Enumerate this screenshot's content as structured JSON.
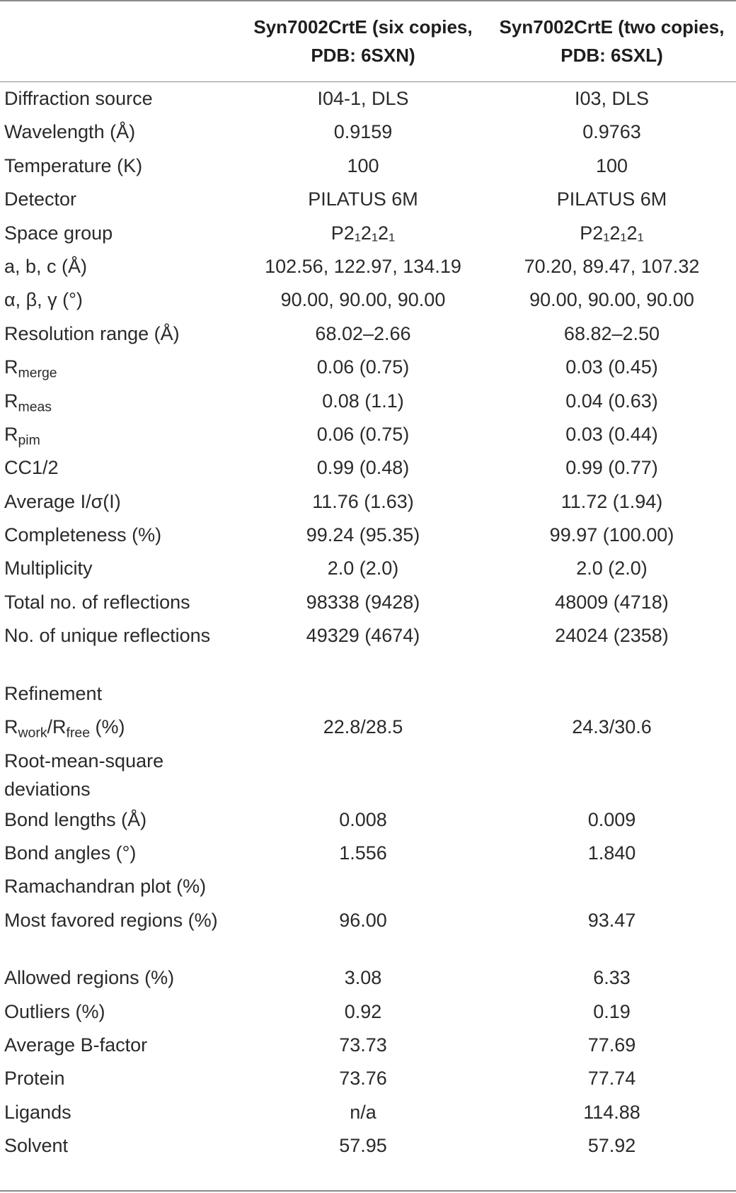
{
  "header": {
    "col2": "Syn7002CrtE (six copies, PDB: 6SXN)",
    "col3": "Syn7002CrtE (two copies, PDB: 6SXL)"
  },
  "rows": [
    {
      "label": "Diffraction source",
      "v1": "I04-1, DLS",
      "v2": "I03, DLS"
    },
    {
      "label": "Wavelength (Å)",
      "v1": "0.9159",
      "v2": "0.9763"
    },
    {
      "label": "Temperature (K)",
      "v1": "100",
      "v2": "100"
    },
    {
      "label": "Detector",
      "v1": "PILATUS 6M",
      "v2": "PILATUS 6M"
    },
    {
      "label": "Space group",
      "v1": "P2₁2₁2₁",
      "v2": "P2₁2₁2₁"
    },
    {
      "label": "a, b, c (Å)",
      "v1": "102.56, 122.97, 134.19",
      "v2": "70.20, 89.47, 107.32"
    },
    {
      "label": "α, β, γ (°)",
      "v1": "90.00, 90.00, 90.00",
      "v2": "90.00, 90.00, 90.00"
    },
    {
      "label": "Resolution range (Å)",
      "v1": "68.02–2.66",
      "v2": "68.82–2.50"
    },
    {
      "label_main": "R",
      "label_sub": "merge",
      "v1": "0.06 (0.75)",
      "v2": "0.03 (0.45)"
    },
    {
      "label_main": "R",
      "label_sub": "meas",
      "v1": "0.08 (1.1)",
      "v2": "0.04 (0.63)"
    },
    {
      "label_main": "R",
      "label_sub": "pim",
      "v1": "0.06 (0.75)",
      "v2": "0.03 (0.44)"
    },
    {
      "label": "CC1/2",
      "v1": "0.99 (0.48)",
      "v2": "0.99 (0.77)"
    },
    {
      "label": "Average I/σ(I)",
      "v1": "11.76 (1.63)",
      "v2": "11.72 (1.94)"
    },
    {
      "label": "Completeness (%)",
      "v1": "99.24 (95.35)",
      "v2": "99.97 (100.00)"
    },
    {
      "label": "Multiplicity",
      "v1": "2.0 (2.0)",
      "v2": "2.0 (2.0)"
    },
    {
      "label": "Total no. of reflections",
      "v1": "98338 (9428)",
      "v2": "48009 (4718)"
    },
    {
      "label": "No. of unique reflections",
      "v1": "49329 (4674)",
      "v2": "24024 (2358)",
      "tall": true
    },
    {
      "label": "Refinement",
      "v1": "",
      "v2": ""
    },
    {
      "label_rwork": "R",
      "sub_work": "work",
      "label_slash": "/R",
      "sub_free": "free",
      "label_tail": " (%)",
      "v1": "22.8/28.5",
      "v2": "24.3/30.6"
    },
    {
      "label": "Root-mean-square deviations",
      "v1": "",
      "v2": "",
      "tall": true
    },
    {
      "label": "Bond lengths (Å)",
      "v1": "0.008",
      "v2": "0.009"
    },
    {
      "label": "Bond angles (°)",
      "v1": "1.556",
      "v2": "1.840"
    },
    {
      "label": "Ramachandran plot (%)",
      "v1": "",
      "v2": ""
    },
    {
      "label": "Most favored regions (%)",
      "v1": "96.00",
      "v2": "93.47",
      "tall": true
    },
    {
      "label": "Allowed regions (%)",
      "v1": "3.08",
      "v2": "6.33"
    },
    {
      "label": "Outliers (%)",
      "v1": "0.92",
      "v2": "0.19"
    },
    {
      "label": "Average B-factor",
      "v1": "73.73",
      "v2": "77.69"
    },
    {
      "label": "Protein",
      "v1": "73.76",
      "v2": "77.74"
    },
    {
      "label": "Ligands",
      "v1": "n/a",
      "v2": "114.88"
    },
    {
      "label": "Solvent",
      "v1": "57.95",
      "v2": "57.92"
    }
  ]
}
